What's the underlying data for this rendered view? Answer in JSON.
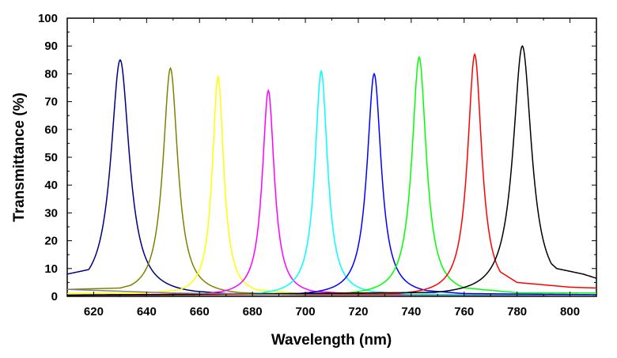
{
  "chart_data": {
    "type": "line",
    "xlabel": "Wavelength (nm)",
    "ylabel": "Transmittance (%)",
    "xlim": [
      610,
      810
    ],
    "ylim": [
      0,
      100
    ],
    "x_ticks": [
      620,
      640,
      660,
      680,
      700,
      720,
      740,
      760,
      780,
      800
    ],
    "y_ticks": [
      0,
      10,
      20,
      30,
      40,
      50,
      60,
      70,
      80,
      90,
      100
    ],
    "grid": false,
    "legend": "none",
    "series": [
      {
        "color": "#000080",
        "peak": {
          "x": 630,
          "y": 85
        },
        "fwhm_nm": 8.5,
        "x": [
          610,
          620,
          624,
          627,
          630,
          633,
          636,
          640,
          650,
          670,
          700,
          750,
          810
        ],
        "y": [
          8.0,
          10.0,
          17.0,
          42.0,
          85.0,
          42.0,
          17.0,
          8.0,
          2.5,
          1.0,
          0.6,
          0.5,
          0.5
        ]
      },
      {
        "color": "#808000",
        "peak": {
          "x": 649,
          "y": 82
        },
        "fwhm_nm": 6.8,
        "x": [
          610,
          630,
          640,
          644,
          647,
          649,
          651,
          654,
          658,
          670,
          700,
          810
        ],
        "y": [
          2.5,
          3.0,
          5.5,
          14.0,
          48.0,
          82.0,
          48.0,
          14.0,
          5.5,
          1.5,
          0.6,
          0.4
        ]
      },
      {
        "color": "#ffff00",
        "peak": {
          "x": 667,
          "y": 79
        },
        "fwhm_nm": 5.2,
        "x": [
          610,
          640,
          655,
          662,
          665,
          667,
          669,
          672,
          680,
          700,
          810
        ],
        "y": [
          1.0,
          1.2,
          2.5,
          9.0,
          42.0,
          79.0,
          42.0,
          9.0,
          2.5,
          0.8,
          0.4
        ]
      },
      {
        "color": "#ff00ff",
        "peak": {
          "x": 686,
          "y": 74
        },
        "fwhm_nm": 5.5,
        "x": [
          610,
          660,
          675,
          681,
          684,
          686,
          688,
          691,
          700,
          720,
          810
        ],
        "y": [
          0.5,
          0.8,
          2.5,
          9.0,
          40.0,
          74.0,
          40.0,
          9.0,
          2.0,
          0.8,
          0.4
        ]
      },
      {
        "color": "#00ffff",
        "peak": {
          "x": 706,
          "y": 81
        },
        "fwhm_nm": 5.8,
        "x": [
          610,
          680,
          695,
          701,
          704,
          706,
          708,
          711,
          720,
          740,
          810
        ],
        "y": [
          0.5,
          0.7,
          2.5,
          9.0,
          44.0,
          81.0,
          44.0,
          9.0,
          2.0,
          0.8,
          0.4
        ]
      },
      {
        "color": "#0000ff",
        "peak": {
          "x": 726,
          "y": 80
        },
        "fwhm_nm": 6.5,
        "x": [
          610,
          700,
          715,
          721,
          724,
          726,
          728,
          731,
          740,
          760,
          810
        ],
        "y": [
          0.5,
          0.8,
          2.5,
          9.0,
          44.0,
          80.0,
          44.0,
          9.0,
          2.5,
          1.0,
          0.6
        ]
      },
      {
        "color": "#00ff00",
        "peak": {
          "x": 743,
          "y": 86
        },
        "fwhm_nm": 6.6,
        "x": [
          610,
          720,
          733,
          738,
          741,
          743,
          745,
          748,
          755,
          780,
          810
        ],
        "y": [
          0.4,
          0.8,
          3.0,
          10.0,
          48.0,
          86.0,
          48.0,
          10.0,
          3.5,
          1.3,
          1.2
        ]
      },
      {
        "color": "#ff0000",
        "peak": {
          "x": 764,
          "y": 87
        },
        "fwhm_nm": 6.5,
        "x": [
          610,
          740,
          753,
          758,
          761,
          764,
          767,
          770,
          780,
          800,
          810
        ],
        "y": [
          0.4,
          0.9,
          3.0,
          11.0,
          46.0,
          87.0,
          46.0,
          11.0,
          5.0,
          3.3,
          3.0
        ]
      },
      {
        "color": "#000000",
        "peak": {
          "x": 782,
          "y": 90
        },
        "fwhm_nm": 8.5,
        "x": [
          610,
          760,
          770,
          776,
          779,
          782,
          785,
          788,
          795,
          805,
          810
        ],
        "y": [
          0.4,
          1.5,
          4.5,
          16.0,
          48.0,
          90.0,
          48.0,
          16.0,
          10.0,
          8.0,
          6.5
        ]
      },
      {
        "color": "#808080",
        "peak": null,
        "fwhm_nm": null,
        "x": [
          610,
          650,
          700,
          760,
          810
        ],
        "y": [
          2.5,
          1.2,
          0.5,
          0.4,
          0.3
        ]
      }
    ]
  }
}
